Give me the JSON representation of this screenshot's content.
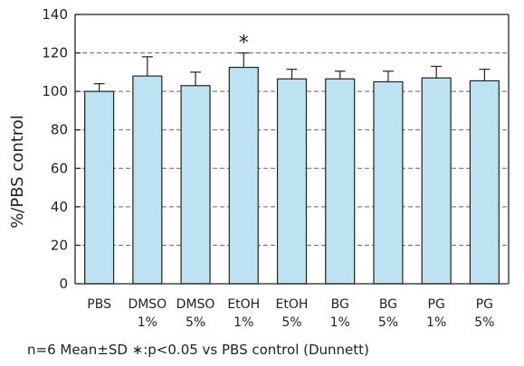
{
  "chart_data": {
    "type": "bar",
    "categories": [
      [
        "PBS"
      ],
      [
        "DMSO",
        "1%"
      ],
      [
        "DMSO",
        "5%"
      ],
      [
        "EtOH",
        "1%"
      ],
      [
        "EtOH",
        "5%"
      ],
      [
        "BG",
        "1%"
      ],
      [
        "BG",
        "5%"
      ],
      [
        "PG",
        "1%"
      ],
      [
        "PG",
        "5%"
      ]
    ],
    "values": [
      100,
      108,
      103,
      112.5,
      106.5,
      106.5,
      105,
      107,
      105.5
    ],
    "errors": [
      4,
      10,
      7,
      7.5,
      5,
      4,
      5.5,
      6,
      6
    ],
    "significance": [
      "",
      "",
      "",
      "*",
      "",
      "",
      "",
      "",
      ""
    ],
    "ylabel": "%/PBS  control",
    "ylim": [
      0,
      140
    ],
    "yticks": [
      0,
      20,
      40,
      60,
      80,
      100,
      120,
      140
    ],
    "grid": true,
    "bar_color": "#bde3f3",
    "footnote": "n=6 Mean±SD    ∗:p<0.05    vs PBS control (Dunnett)"
  }
}
